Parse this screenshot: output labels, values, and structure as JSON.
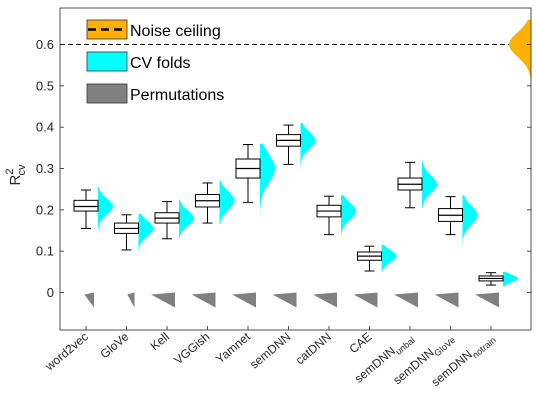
{
  "chart_data": {
    "type": "box",
    "ylabel": {
      "main": "R",
      "sup": "2",
      "sub": "cv"
    },
    "ylim": [
      -0.095,
      0.68
    ],
    "yticks": [
      0,
      0.1,
      0.2,
      0.3,
      0.4,
      0.5,
      0.6
    ],
    "ytick_labels": [
      "0",
      "0.1",
      "0.2",
      "0.3",
      "0.4",
      "0.5",
      "0.6"
    ],
    "noise_ceiling": 0.6,
    "legend": {
      "placement": "top-left",
      "noise_ceiling": {
        "label": "Noise ceiling",
        "color": "#ffb000"
      },
      "cv_folds": {
        "label": "CV folds",
        "color": "#00ffff"
      },
      "permutations": {
        "label": "Permutations",
        "color": "#808080"
      }
    },
    "models": [
      {
        "label": "word2vec",
        "sub": "",
        "whisker_low": 0.155,
        "q1": 0.197,
        "median": 0.208,
        "q3": 0.223,
        "whisker_high": 0.248,
        "dist_low": 0.12,
        "dist_high": 0.255,
        "perm_scale": 0.4
      },
      {
        "label": "GloVe",
        "sub": "",
        "whisker_low": 0.103,
        "q1": 0.143,
        "median": 0.155,
        "q3": 0.168,
        "whisker_high": 0.188,
        "dist_low": 0.1,
        "dist_high": 0.19,
        "perm_scale": 0.3
      },
      {
        "label": "Kell",
        "sub": "",
        "whisker_low": 0.13,
        "q1": 0.168,
        "median": 0.18,
        "q3": 0.193,
        "whisker_high": 0.22,
        "dist_low": 0.13,
        "dist_high": 0.225,
        "perm_scale": 1.0
      },
      {
        "label": "VGGish",
        "sub": "",
        "whisker_low": 0.168,
        "q1": 0.207,
        "median": 0.222,
        "q3": 0.237,
        "whisker_high": 0.265,
        "dist_low": 0.165,
        "dist_high": 0.27,
        "perm_scale": 1.0
      },
      {
        "label": "Yamnet",
        "sub": "",
        "whisker_low": 0.218,
        "q1": 0.277,
        "median": 0.3,
        "q3": 0.323,
        "whisker_high": 0.358,
        "dist_low": 0.16,
        "dist_high": 0.36,
        "perm_scale": 1.0
      },
      {
        "label": "semDNN",
        "sub": "",
        "whisker_low": 0.31,
        "q1": 0.354,
        "median": 0.368,
        "q3": 0.382,
        "whisker_high": 0.405,
        "dist_low": 0.285,
        "dist_high": 0.41,
        "perm_scale": 1.0
      },
      {
        "label": "catDNN",
        "sub": "",
        "whisker_low": 0.14,
        "q1": 0.183,
        "median": 0.197,
        "q3": 0.211,
        "whisker_high": 0.233,
        "dist_low": 0.105,
        "dist_high": 0.235,
        "perm_scale": 1.0
      },
      {
        "label": "CAE",
        "sub": "",
        "whisker_low": 0.052,
        "q1": 0.078,
        "median": 0.088,
        "q3": 0.098,
        "whisker_high": 0.112,
        "dist_low": 0.05,
        "dist_high": 0.115,
        "perm_scale": 1.0
      },
      {
        "label": "semDNN",
        "sub": "unbal",
        "whisker_low": 0.205,
        "q1": 0.248,
        "median": 0.262,
        "q3": 0.277,
        "whisker_high": 0.315,
        "dist_low": 0.205,
        "dist_high": 0.32,
        "perm_scale": 1.0
      },
      {
        "label": "semDNN",
        "sub": "GloVe",
        "whisker_low": 0.14,
        "q1": 0.172,
        "median": 0.187,
        "q3": 0.203,
        "whisker_high": 0.232,
        "dist_low": 0.095,
        "dist_high": 0.235,
        "perm_scale": 1.0
      },
      {
        "label": "semDNN",
        "sub": "notrain",
        "whisker_low": 0.018,
        "q1": 0.028,
        "median": 0.034,
        "q3": 0.04,
        "whisker_high": 0.048,
        "dist_low": 0.015,
        "dist_high": 0.05,
        "perm_scale": 1.0
      }
    ]
  }
}
